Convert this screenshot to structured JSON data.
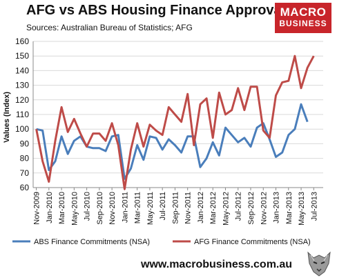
{
  "header": {
    "title": "AFG vs ABS Housing Finance Approvals",
    "subtitle": "Sources: Australian Bureau of Statistics; AFG"
  },
  "brand": {
    "line1": "MACRO",
    "line2": "BUSINESS",
    "color": "#c8252b"
  },
  "footer": {
    "url": "www.macrobusiness.com.au",
    "logo_icon": "wolf-head-icon"
  },
  "chart_data": {
    "type": "line",
    "title": "AFG vs ABS Housing Finance Approvals",
    "xlabel": "",
    "ylabel": "Values (Index)",
    "ylim": [
      60,
      160
    ],
    "yticks": [
      60,
      70,
      80,
      90,
      100,
      110,
      120,
      130,
      140,
      150,
      160
    ],
    "grid": true,
    "legend": "bottom",
    "x": [
      "Nov-2009",
      "Dec-2009",
      "Jan-2010",
      "Feb-2010",
      "Mar-2010",
      "Apr-2010",
      "May-2010",
      "Jun-2010",
      "Jul-2010",
      "Aug-2010",
      "Sep-2010",
      "Oct-2010",
      "Nov-2010",
      "Dec-2010",
      "Jan-2011",
      "Feb-2011",
      "Mar-2011",
      "Apr-2011",
      "May-2011",
      "Jun-2011",
      "Jul-2011",
      "Aug-2011",
      "Sep-2011",
      "Oct-2011",
      "Nov-2011",
      "Dec-2011",
      "Jan-2012",
      "Feb-2012",
      "Mar-2012",
      "Apr-2012",
      "May-2012",
      "Jun-2012",
      "Jul-2012",
      "Aug-2012",
      "Sep-2012",
      "Oct-2012",
      "Nov-2012",
      "Dec-2012",
      "Jan-2013",
      "Feb-2013",
      "Mar-2013",
      "Apr-2013",
      "May-2013",
      "Jun-2013",
      "Jul-2013",
      "Aug-2013"
    ],
    "xtick_labels": [
      "Nov-2009",
      "Jan-2010",
      "Mar-2010",
      "May-2010",
      "Jul-2010",
      "Sep-2010",
      "Nov-2010",
      "Jan-2011",
      "Mar-2011",
      "May-2011",
      "Jul-2011",
      "Sep-2011",
      "Nov-2011",
      "Jan-2012",
      "Mar-2012",
      "May-2012",
      "Jul-2012",
      "Sep-2012",
      "Nov-2012",
      "Jan-2013",
      "Mar-2013",
      "May-2013",
      "Jul-2013"
    ],
    "series": [
      {
        "name": "ABS Finance Commitments (NSA)",
        "color": "#4a7ebb",
        "values": [
          100,
          99,
          72,
          78,
          95,
          83,
          92,
          95,
          88,
          87,
          87,
          85,
          95,
          96,
          66,
          73,
          89,
          79,
          95,
          94,
          86,
          93,
          89,
          84,
          95,
          95,
          74,
          80,
          91,
          82,
          101,
          96,
          91,
          94,
          88,
          101,
          104,
          93,
          81,
          84,
          96,
          100,
          117,
          105,
          null,
          null
        ]
      },
      {
        "name": "AFG Finance Commitments (NSA)",
        "color": "#be4b48",
        "values": [
          100,
          78,
          64,
          92,
          115,
          98,
          107,
          97,
          88,
          97,
          97,
          92,
          104,
          89,
          59,
          86,
          104,
          88,
          103,
          99,
          96,
          115,
          110,
          105,
          124,
          89,
          117,
          121,
          94,
          125,
          110,
          113,
          128,
          113,
          129,
          129,
          99,
          94,
          123,
          132,
          133,
          150,
          128,
          142,
          150,
          null
        ]
      }
    ]
  }
}
